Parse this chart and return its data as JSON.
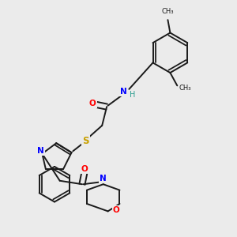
{
  "bg_color": "#ebebeb",
  "bond_color": "#1a1a1a",
  "bond_lw": 1.4,
  "figsize": [
    3.0,
    3.0
  ],
  "dpi": 100,
  "xlim": [
    0.0,
    10.0
  ],
  "ylim": [
    0.0,
    10.0
  ]
}
